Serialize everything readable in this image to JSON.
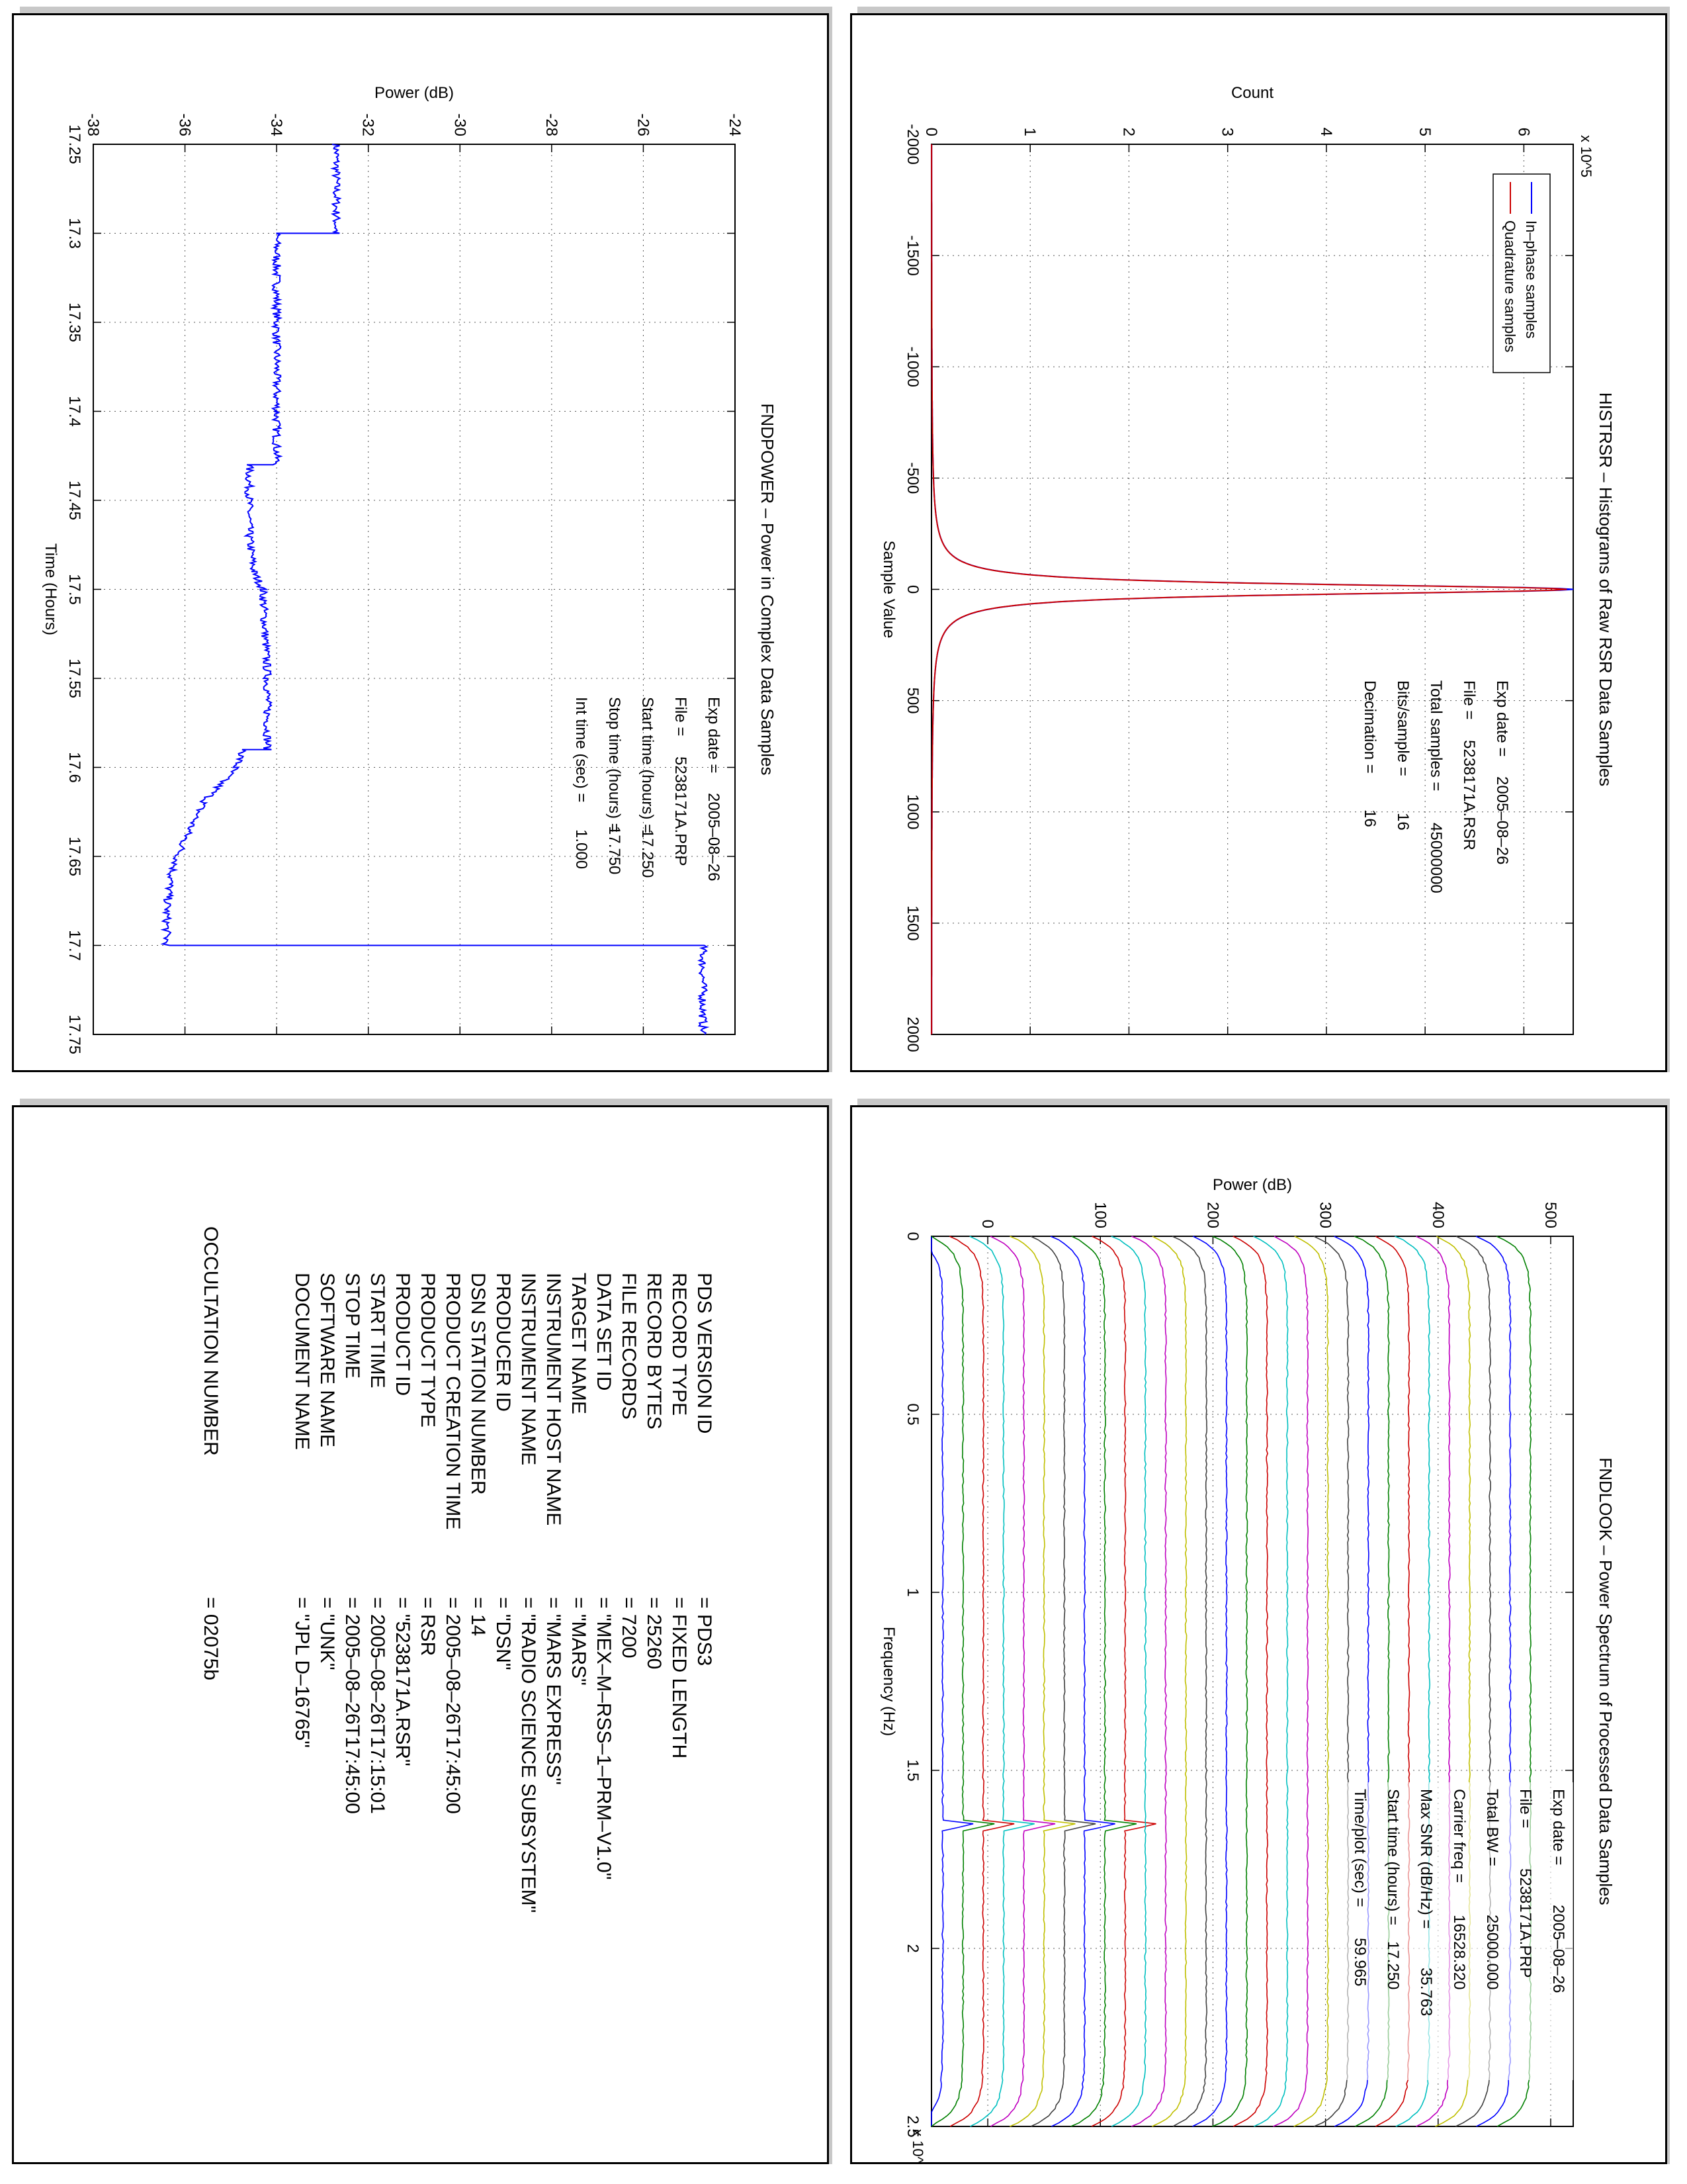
{
  "chart_data": [
    {
      "type": "line",
      "title": "HISTRSR – Histograms of Raw RSR Data Samples",
      "xlabel": "Sample Value",
      "ylabel": "Count",
      "y_exponent": "x 10^5",
      "xlim": [
        -2000,
        2000
      ],
      "ylim": [
        0,
        6.5
      ],
      "xticks": [
        "-2000",
        "-1500",
        "-1000",
        "-500",
        "0",
        "500",
        "1000",
        "1500",
        "2000"
      ],
      "yticks": [
        "0",
        "1",
        "2",
        "3",
        "4",
        "5",
        "6"
      ],
      "grid": true,
      "legend_position": "top-right",
      "series": [
        {
          "name": "In–phase samples",
          "color": "#0000ff",
          "peak_x": 0,
          "peak_y": 6.5,
          "halfwidth": 28
        },
        {
          "name": "Quadrature samples",
          "color": "#cc0000",
          "peak_x": 0,
          "peak_y": 6.5,
          "halfwidth": 28
        }
      ],
      "info": [
        {
          "label": "Exp date =",
          "value": "2005–08–26"
        },
        {
          "label": "File =",
          "value": "5238171A.RSR"
        },
        {
          "label": "Total samples =",
          "value": "45000000"
        },
        {
          "label": "Bits/sample =",
          "value": "16"
        },
        {
          "label": "Decimation =",
          "value": "16"
        }
      ]
    },
    {
      "type": "line",
      "title": "FNDPOWER – Power in Complex Data Samples",
      "xlabel": "Time (Hours)",
      "ylabel": "Power (dB)",
      "xlim": [
        17.25,
        17.75
      ],
      "ylim": [
        -38,
        -24
      ],
      "xticks": [
        "17.25",
        "17.3",
        "17.35",
        "17.4",
        "17.45",
        "17.5",
        "17.55",
        "17.6",
        "17.65",
        "17.7",
        "17.75"
      ],
      "yticks": [
        "-38",
        "-36",
        "-34",
        "-32",
        "-30",
        "-28",
        "-26",
        "-24"
      ],
      "grid": true,
      "series": [
        {
          "name": "",
          "color": "#0000ff",
          "x": [
            17.25,
            17.29,
            17.3,
            17.3,
            17.35,
            17.4,
            17.43,
            17.43,
            17.47,
            17.49,
            17.5,
            17.55,
            17.59,
            17.59,
            17.6,
            17.62,
            17.64,
            17.66,
            17.68,
            17.7,
            17.7,
            17.71,
            17.75
          ],
          "y": [
            -32.7,
            -32.7,
            -32.7,
            -34.0,
            -34.0,
            -34.0,
            -34.0,
            -34.6,
            -34.6,
            -34.5,
            -34.3,
            -34.2,
            -34.2,
            -34.7,
            -34.9,
            -35.6,
            -36.0,
            -36.3,
            -36.4,
            -36.4,
            -24.7,
            -24.7,
            -24.7
          ]
        }
      ],
      "info": [
        {
          "label": "Exp date =",
          "value": "2005–08–26"
        },
        {
          "label": "File =",
          "value": "5238171A.PRP"
        },
        {
          "label": "Start time (hours) =",
          "value": "17.250"
        },
        {
          "label": "Stop time (hours) =",
          "value": "17.750"
        },
        {
          "label": "Int time (sec) =",
          "value": "1.000"
        }
      ]
    },
    {
      "type": "line",
      "title": "FNDLOOK – Power Spectrum of Processed Data Samples",
      "xlabel": "Frequency (Hz)",
      "ylabel": "Power (dB)",
      "x_exponent": "x 10^4",
      "xlim": [
        0,
        2.5
      ],
      "ylim": [
        -50,
        520
      ],
      "xticks": [
        "0",
        "0.5",
        "1",
        "1.5",
        "2",
        "2.5"
      ],
      "yticks": [
        "0",
        "100",
        "200",
        "300",
        "400",
        "500"
      ],
      "grid": true,
      "spectra": {
        "count": 30,
        "start_level": -40,
        "step": 18,
        "peak_frequency": 1.6528,
        "peak_height_lowest": 36,
        "colors": [
          "#0000ff",
          "#008000",
          "#cc0000",
          "#00bfbf",
          "#bf00bf",
          "#bfbf00",
          "#404040"
        ]
      },
      "info": [
        {
          "label": "Exp date =",
          "value": "2005–08–26"
        },
        {
          "label": "File =",
          "value": "5238171A.PRP"
        },
        {
          "label": "Total BW =",
          "value": "25000.000"
        },
        {
          "label": "Carrier freq =",
          "value": "16528.320"
        },
        {
          "label": "Max SNR (dB/Hz) =",
          "value": "35.763"
        },
        {
          "label": "Start time (hours) =",
          "value": "17.250"
        },
        {
          "label": "Time/plot (sec) =",
          "value": "59.965"
        }
      ]
    }
  ],
  "labels_table": [
    {
      "key": "PDS VERSION ID",
      "value": "= PDS3"
    },
    {
      "key": "RECORD TYPE",
      "value": "= FIXED LENGTH"
    },
    {
      "key": "RECORD BYTES",
      "value": "= 25260"
    },
    {
      "key": "FILE RECORDS",
      "value": "= 7200"
    },
    {
      "key": "DATA SET ID",
      "value": "= \"MEX–M–RSS–1–PRM–V1.0\""
    },
    {
      "key": "TARGET NAME",
      "value": "= \"MARS\""
    },
    {
      "key": "INSTRUMENT HOST NAME",
      "value": "= \"MARS EXPRESS\""
    },
    {
      "key": "INSTRUMENT NAME",
      "value": "= \"RADIO SCIENCE SUBSYSTEM\""
    },
    {
      "key": "PRODUCER ID",
      "value": "= \"DSN\""
    },
    {
      "key": "DSN STATION NUMBER",
      "value": "= 14"
    },
    {
      "key": "PRODUCT CREATION TIME",
      "value": "= 2005–08–26T17:45:00"
    },
    {
      "key": "PRODUCT TYPE",
      "value": "= RSR"
    },
    {
      "key": "PRODUCT ID",
      "value": "= \"5238171A.RSR\""
    },
    {
      "key": "START TIME",
      "value": "= 2005–08–26T17:15:01"
    },
    {
      "key": "STOP TIME",
      "value": "= 2005–08–26T17:45:00"
    },
    {
      "key": "SOFTWARE NAME",
      "value": "= \"UNK\""
    },
    {
      "key": "DOCUMENT NAME",
      "value": "= \"JPL D–16765\""
    },
    {
      "key": "OCCULTATION NUMBER",
      "value": "= 02075b"
    }
  ]
}
